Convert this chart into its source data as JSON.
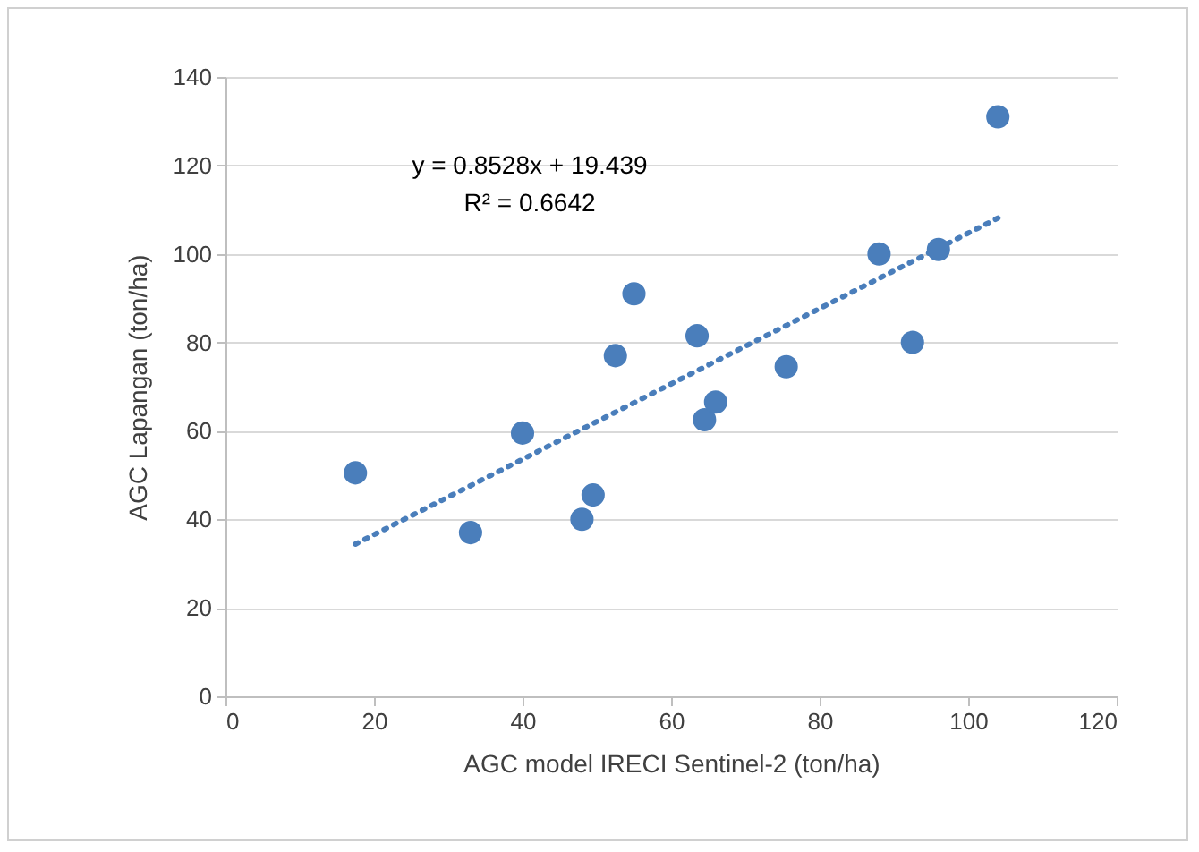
{
  "chart_data": {
    "type": "scatter",
    "xlabel": "AGC model IRECI Sentinel-2 (ton/ha)",
    "ylabel": "AGC Lapangan (ton/ha)",
    "x": [
      17.5,
      33,
      40,
      48,
      49.5,
      52.5,
      55,
      63.5,
      64.5,
      66,
      75.5,
      88,
      92.5,
      96,
      104
    ],
    "series": [
      {
        "type": "scatter",
        "color": "#4a7ebb",
        "values": [
          50.5,
          37,
          59.5,
          40,
          45.5,
          77,
          91,
          81.5,
          62.5,
          66.5,
          74.5,
          100,
          80,
          101,
          131
        ]
      },
      {
        "type": "line",
        "color": "#4a7ebb",
        "line_style": "dotted",
        "marker": "none",
        "x": [
          17.5,
          104
        ],
        "values": [
          34.4,
          108.1
        ]
      }
    ],
    "annotations": [
      "y = 0.8528x + 19.439",
      "R² = 0.6642"
    ],
    "xlim": [
      0,
      120
    ],
    "xticks": [
      0,
      20,
      40,
      60,
      80,
      100,
      120
    ],
    "ylim": [
      0,
      140
    ],
    "yticks": [
      0,
      20,
      40,
      60,
      80,
      100,
      120,
      140
    ],
    "grid": "y",
    "marker": "circle"
  }
}
